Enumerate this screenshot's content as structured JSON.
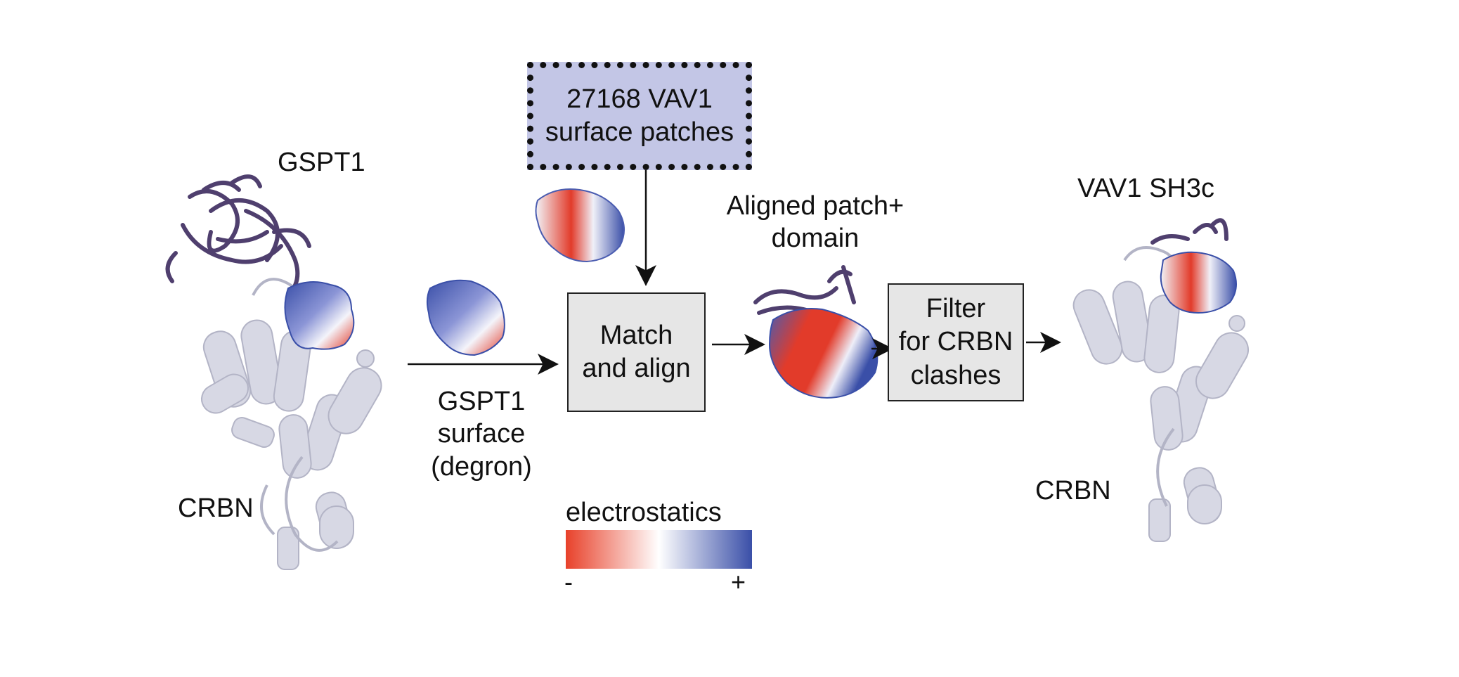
{
  "labels": {
    "gspt1_top": "GSPT1",
    "crbn_left": "CRBN",
    "gspt1_surface": [
      "GSPT1",
      "surface",
      "(degron)"
    ],
    "aligned": [
      "Aligned patch+",
      "domain"
    ],
    "vav1_sh3c": "VAV1 SH3c",
    "crbn_right": "CRBN"
  },
  "boxes": {
    "patches": [
      "27168 VAV1",
      "surface patches"
    ],
    "match": [
      "Match",
      "and align"
    ],
    "filter": [
      "Filter",
      "for CRBN",
      "clashes"
    ]
  },
  "legend": {
    "title": "electrostatics",
    "minus": "-",
    "plus": "+",
    "colors": [
      "#e8412a",
      "#ffffff",
      "#3a4fa8"
    ]
  },
  "colors": {
    "protein": "#d7d8e4",
    "protein_edge": "#b7b8c8",
    "degron_domain": "#4f3f6e",
    "arrow": "#111111"
  }
}
